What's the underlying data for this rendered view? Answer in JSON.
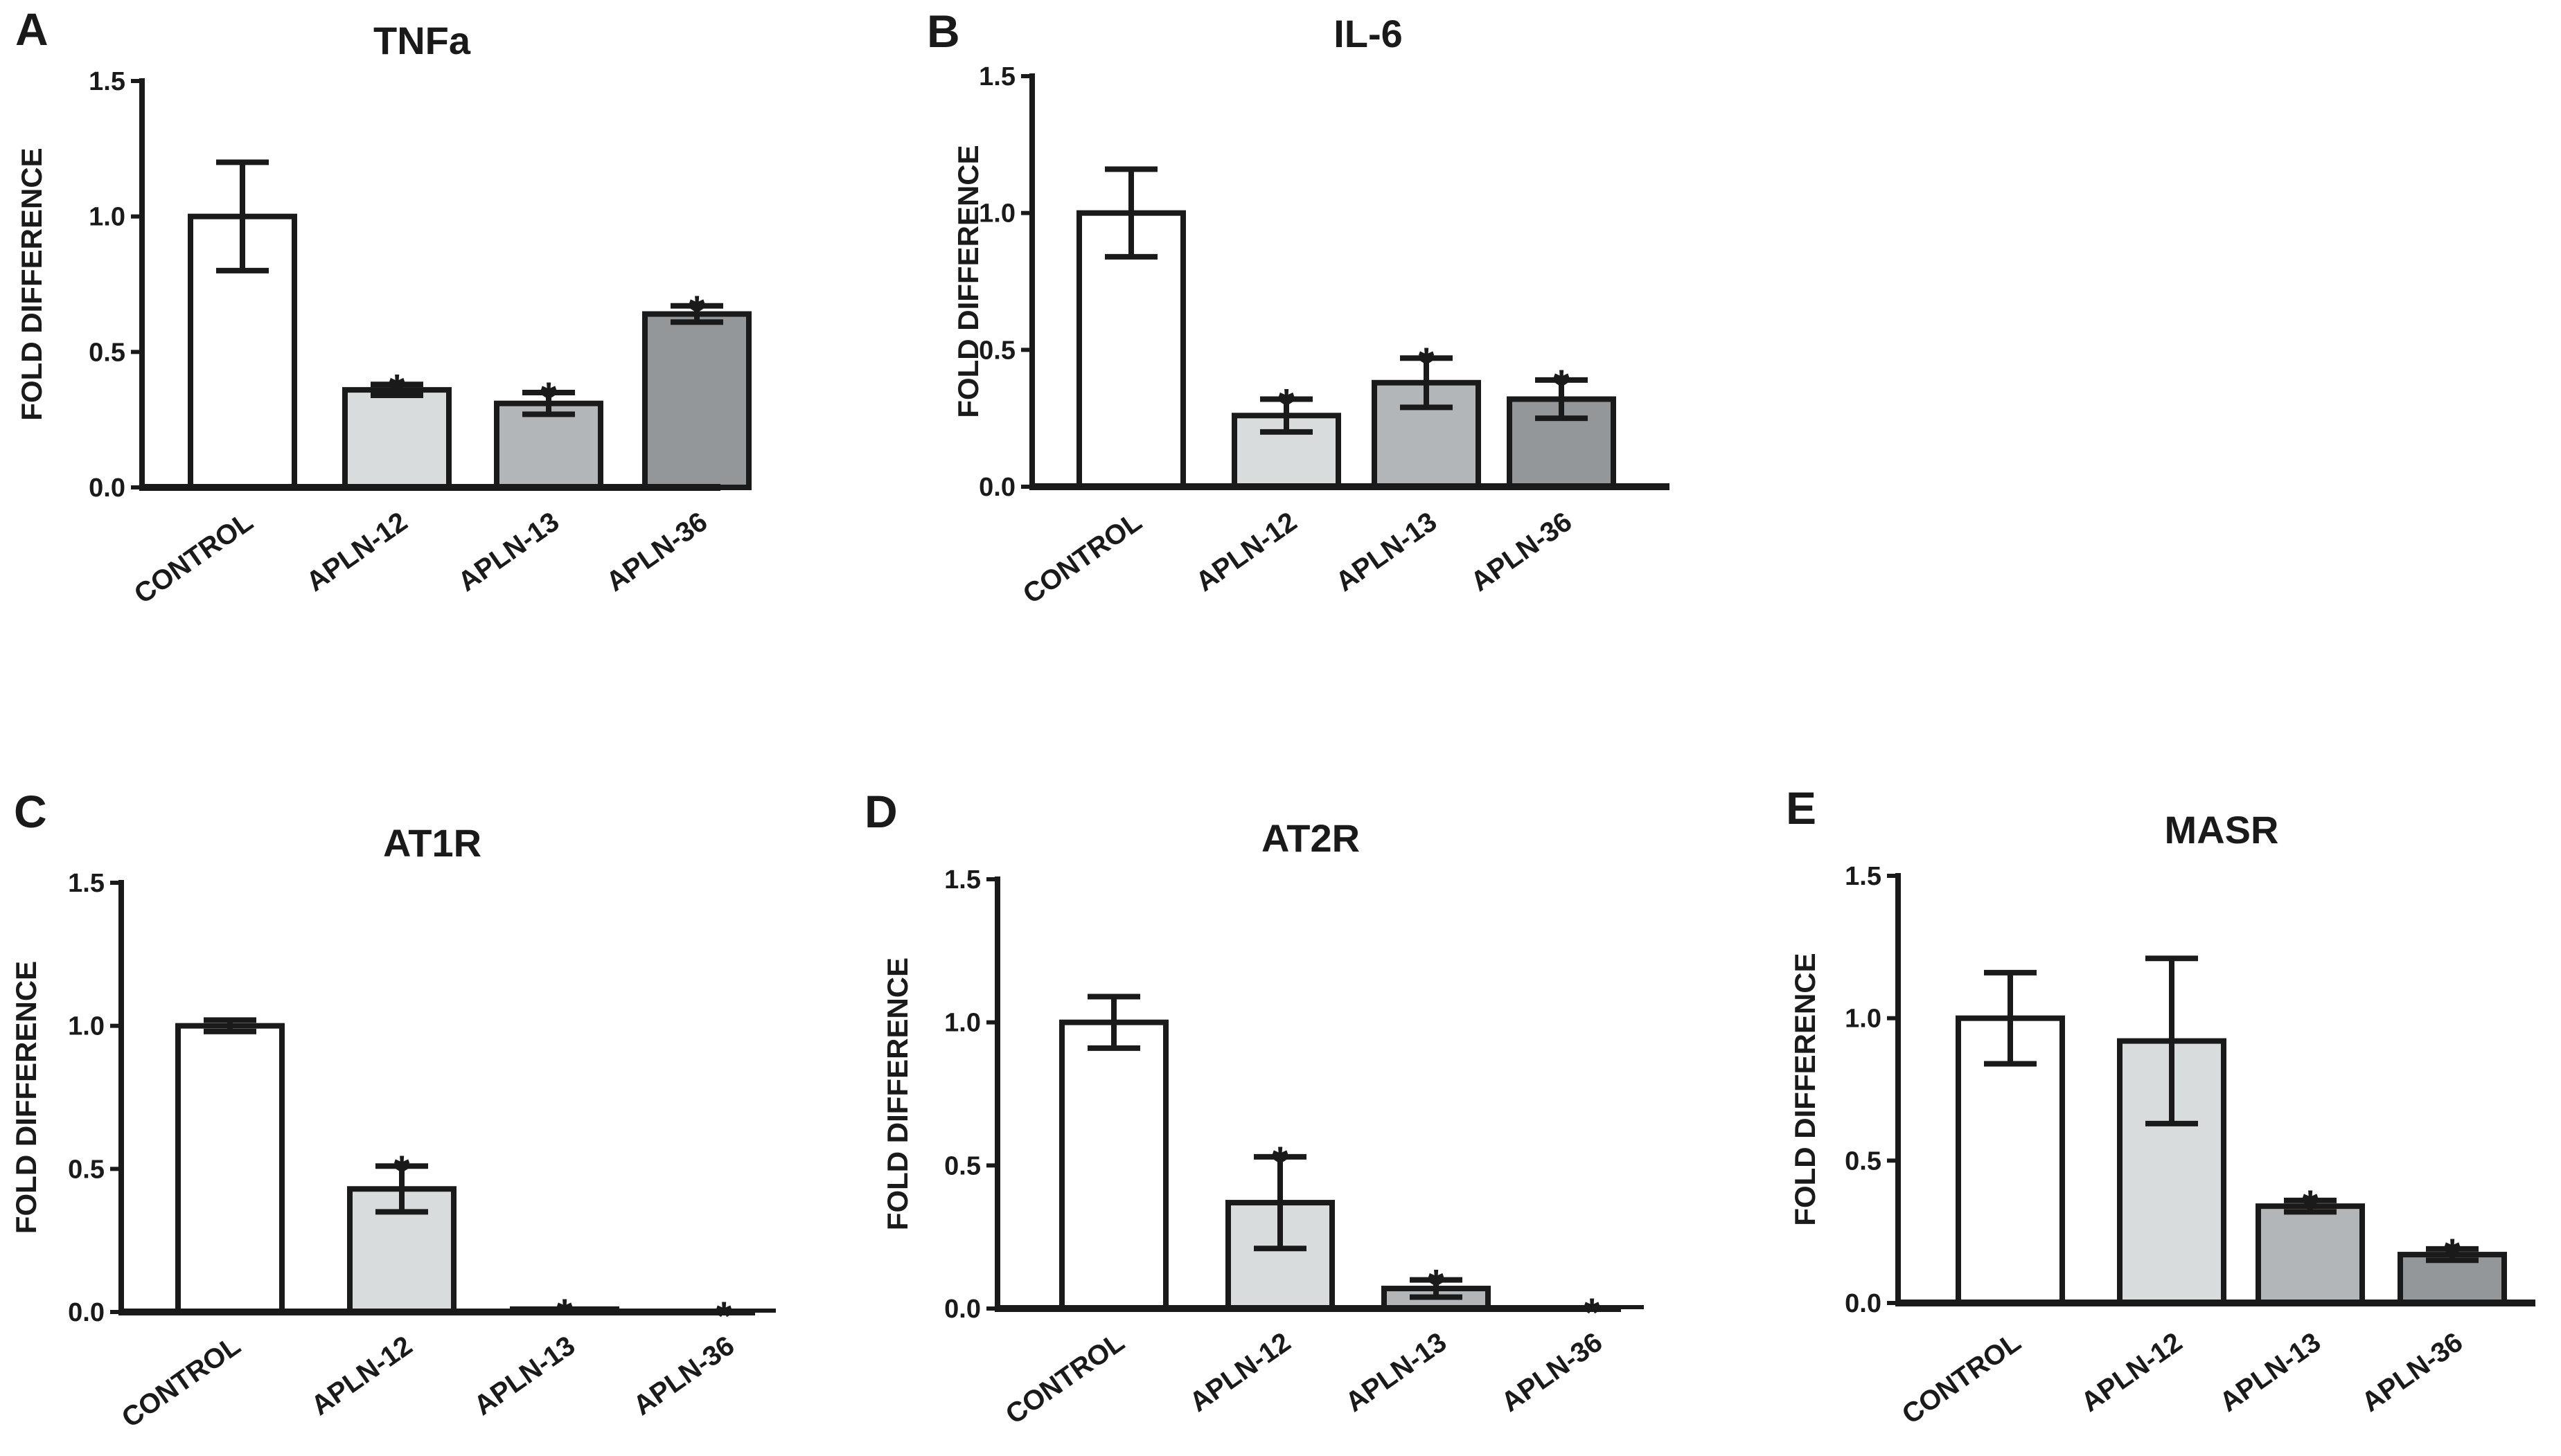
{
  "figure": {
    "background": "#ffffff",
    "ink": "#1a1a1a"
  },
  "chart_data": [
    {
      "panel": "A",
      "title": "TNFa",
      "type": "bar",
      "ylabel": "FOLD DIFFERENCE",
      "ylim": [
        0,
        1.5
      ],
      "yticks": [
        0.0,
        0.5,
        1.0,
        1.5
      ],
      "ytick_labels": [
        "0.0",
        "0.5",
        "1.0",
        "1.5"
      ],
      "categories": [
        "CONTROL",
        "APLN-12",
        "APLN-13",
        "APLN-36"
      ],
      "values": [
        1.0,
        0.36,
        0.31,
        0.64
      ],
      "errors": [
        0.2,
        0.02,
        0.04,
        0.03
      ],
      "significance": [
        "",
        "*",
        "*",
        "*"
      ],
      "fills": [
        "#ffffff",
        "#d9dcdd",
        "#b3b6b8",
        "#949799"
      ]
    },
    {
      "panel": "B",
      "title": "IL-6",
      "type": "bar",
      "ylabel": "FOLD DIFFERENCE",
      "ylim": [
        0,
        1.5
      ],
      "yticks": [
        0.0,
        0.5,
        1.0,
        1.5
      ],
      "ytick_labels": [
        "0.0",
        "0.5",
        "1.0",
        "1.5"
      ],
      "categories": [
        "CONTROL",
        "APLN-12",
        "APLN-13",
        "APLN-36"
      ],
      "values": [
        1.0,
        0.26,
        0.38,
        0.32
      ],
      "errors": [
        0.16,
        0.06,
        0.09,
        0.07
      ],
      "significance": [
        "",
        "*",
        "*",
        "*"
      ],
      "fills": [
        "#ffffff",
        "#d9dcdd",
        "#b3b6b8",
        "#949799"
      ]
    },
    {
      "panel": "C",
      "title": "AT1R",
      "type": "bar",
      "ylabel": "FOLD DIFFERENCE",
      "ylim": [
        0,
        1.5
      ],
      "yticks": [
        0.0,
        0.5,
        1.0,
        1.5
      ],
      "ytick_labels": [
        "0.0",
        "0.5",
        "1.0",
        "1.5"
      ],
      "categories": [
        "CONTROL",
        "APLN-12",
        "APLN-13",
        "APLN-36"
      ],
      "values": [
        1.0,
        0.43,
        0.01,
        0.0
      ],
      "errors": [
        0.02,
        0.08,
        0.0,
        0.0
      ],
      "significance": [
        "",
        "*",
        "*",
        "*"
      ],
      "fills": [
        "#ffffff",
        "#d9dcdd",
        "#b3b6b8",
        "#949799"
      ]
    },
    {
      "panel": "D",
      "title": "AT2R",
      "type": "bar",
      "ylabel": "FOLD DIFFERENCE",
      "ylim": [
        0,
        1.5
      ],
      "yticks": [
        0.0,
        0.5,
        1.0,
        1.5
      ],
      "ytick_labels": [
        "0.0",
        "0.5",
        "1.0",
        "1.5"
      ],
      "categories": [
        "CONTROL",
        "APLN-12",
        "APLN-13",
        "APLN-36"
      ],
      "values": [
        1.0,
        0.37,
        0.07,
        0.0
      ],
      "errors": [
        0.09,
        0.16,
        0.03,
        0.0
      ],
      "significance": [
        "",
        "*",
        "*",
        "*"
      ],
      "fills": [
        "#ffffff",
        "#d9dcdd",
        "#b3b6b8",
        "#949799"
      ]
    },
    {
      "panel": "E",
      "title": "MASR",
      "type": "bar",
      "ylabel": "FOLD DIFFERENCE",
      "ylim": [
        0,
        1.5
      ],
      "yticks": [
        0.0,
        0.5,
        1.0,
        1.5
      ],
      "ytick_labels": [
        "0.0",
        "0.5",
        "1.0",
        "1.5"
      ],
      "categories": [
        "CONTROL",
        "APLN-12",
        "APLN-13",
        "APLN-36"
      ],
      "values": [
        1.0,
        0.92,
        0.34,
        0.17
      ],
      "errors": [
        0.16,
        0.29,
        0.02,
        0.02
      ],
      "significance": [
        "",
        "",
        "*",
        "*"
      ],
      "fills": [
        "#ffffff",
        "#d9dcdd",
        "#b3b6b8",
        "#949799"
      ]
    }
  ]
}
